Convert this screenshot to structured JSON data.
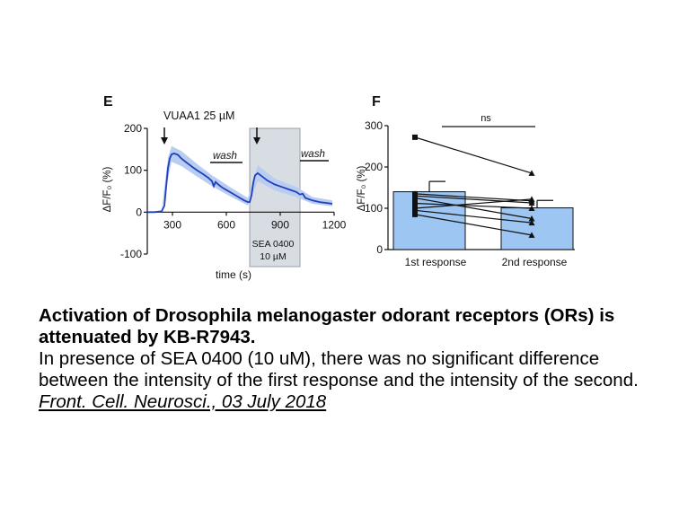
{
  "panel_e": {
    "label": "E",
    "stimulus_label": "VUAA1 25 µM",
    "wash_labels": [
      "wash",
      "wash"
    ],
    "drug_box_label": [
      "SEA 0400",
      "10 µM"
    ]
  },
  "panel_f": {
    "label": "F",
    "significance": "ns"
  },
  "caption": {
    "title": "Activation of Drosophila melanogaster odorant receptors (ORs) is attenuated by KB-R7943.",
    "body": "In presence of SEA 0400 (10 uM), there was no significant difference between the intensity of the first response and the intensity of the second.",
    "citation": "Front. Cell. Neurosci., 03 July 2018"
  },
  "colors": {
    "trace": "#1f3fbf",
    "trace_band": "#b9cdf0",
    "bar_fill": "#9dc6f2",
    "drug_box": "#d8dce3"
  },
  "chart_data": [
    {
      "type": "line",
      "panel": "E",
      "xlabel": "time (s)",
      "ylabel": "ΔF/F₀ (%)",
      "xlim": [
        160,
        1200
      ],
      "ylim": [
        -100,
        200
      ],
      "xticks": [
        300,
        600,
        900,
        1200
      ],
      "yticks": [
        -100,
        0,
        100,
        200
      ],
      "series": [
        {
          "name": "mean ΔF/F₀",
          "x": [
            160,
            200,
            240,
            255,
            265,
            275,
            285,
            295,
            310,
            330,
            350,
            380,
            410,
            440,
            470,
            500,
            520,
            530,
            540,
            555,
            580,
            620,
            660,
            700,
            720,
            730,
            740,
            750,
            760,
            775,
            800,
            830,
            870,
            910,
            950,
            990,
            1010,
            1025,
            1040,
            1080,
            1120,
            1160,
            1190
          ],
          "y": [
            0,
            0,
            2,
            15,
            60,
            105,
            128,
            138,
            140,
            137,
            128,
            118,
            108,
            99,
            91,
            82,
            74,
            62,
            72,
            66,
            58,
            48,
            38,
            28,
            24,
            24,
            40,
            70,
            88,
            93,
            85,
            75,
            66,
            60,
            54,
            48,
            42,
            44,
            34,
            28,
            24,
            22,
            20
          ]
        }
      ],
      "sem_band": [
        {
          "x": 160,
          "lower": 0,
          "upper": 0
        },
        {
          "x": 240,
          "lower": 0,
          "upper": 4
        },
        {
          "x": 275,
          "lower": 80,
          "upper": 130
        },
        {
          "x": 295,
          "lower": 120,
          "upper": 158
        },
        {
          "x": 350,
          "lower": 110,
          "upper": 146
        },
        {
          "x": 440,
          "lower": 84,
          "upper": 114
        },
        {
          "x": 520,
          "lower": 62,
          "upper": 88
        },
        {
          "x": 620,
          "lower": 38,
          "upper": 60
        },
        {
          "x": 720,
          "lower": 16,
          "upper": 34
        },
        {
          "x": 775,
          "lower": 74,
          "upper": 112
        },
        {
          "x": 870,
          "lower": 52,
          "upper": 80
        },
        {
          "x": 990,
          "lower": 36,
          "upper": 60
        },
        {
          "x": 1080,
          "lower": 20,
          "upper": 36
        },
        {
          "x": 1190,
          "lower": 14,
          "upper": 28
        }
      ],
      "annotations": [
        {
          "text": "VUAA1 25 µM",
          "arrow_at_x": 270
        },
        {
          "arrow_at_x": 780
        },
        {
          "text": "wash",
          "x_start": 520,
          "x_end": 680
        },
        {
          "text": "wash",
          "x_start": 1000,
          "x_end": 1150
        },
        {
          "text": "SEA 0400 10 µM",
          "shaded_x_start": 730,
          "shaded_x_end": 1010
        }
      ]
    },
    {
      "type": "bar",
      "panel": "F",
      "categories": [
        "1st response",
        "2nd response"
      ],
      "values": [
        140,
        101
      ],
      "errors": [
        25,
        18
      ],
      "ylabel": "ΔF/F₀ (%)",
      "ylim": [
        0,
        300
      ],
      "yticks": [
        0,
        100,
        200,
        300
      ],
      "significance": "ns",
      "paired_points": [
        [
          272,
          185
        ],
        [
          135,
          118
        ],
        [
          130,
          113
        ],
        [
          125,
          75
        ],
        [
          112,
          100
        ],
        [
          100,
          122
        ],
        [
          95,
          65
        ],
        [
          85,
          35
        ]
      ]
    }
  ]
}
